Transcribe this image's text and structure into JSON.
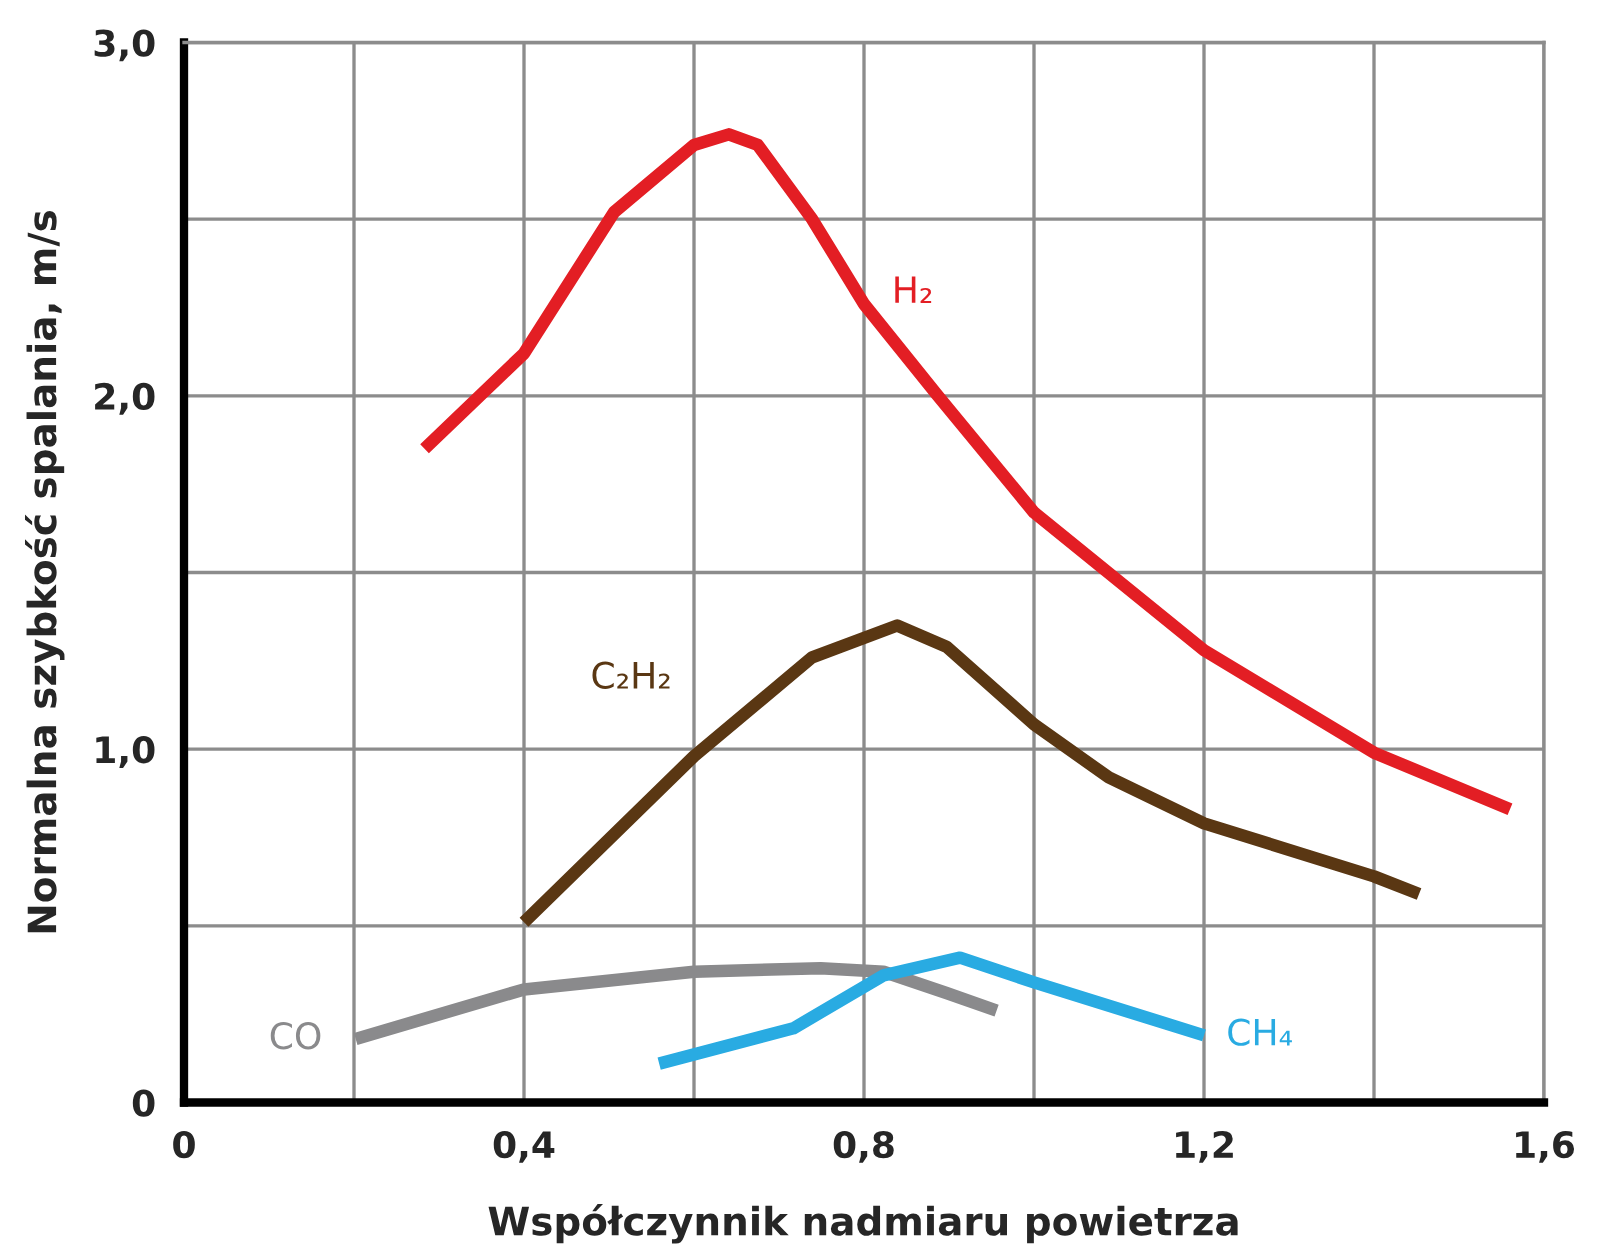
{
  "chart_data": {
    "type": "line",
    "xlabel": "Współczynnik nadmiaru powietrza",
    "ylabel": "Normalna szybkość spalania, m/s",
    "xlim": [
      0,
      1.6
    ],
    "ylim": [
      0,
      3.0
    ],
    "xticks": [
      0,
      {
        "value": 0.2,
        "label": null
      },
      {
        "value": 0.4,
        "label": "0,4"
      },
      {
        "value": 0.6,
        "label": null
      },
      {
        "value": 0.8,
        "label": "0,8"
      },
      {
        "value": 1.0,
        "label": null
      },
      {
        "value": 1.2,
        "label": "1,2"
      },
      {
        "value": 1.4,
        "label": null
      },
      {
        "value": 1.6,
        "label": "1,6"
      }
    ],
    "yticks": [
      0,
      {
        "value": 0.5,
        "label": null
      },
      {
        "value": 1.0,
        "label": "1,0"
      },
      {
        "value": 1.5,
        "label": null
      },
      {
        "value": 2.0,
        "label": "2,0"
      },
      {
        "value": 2.5,
        "label": null
      },
      {
        "value": 3.0,
        "label": "3,0"
      }
    ],
    "grid": true,
    "marker": "none",
    "line_style": "solid",
    "series": [
      {
        "name": "H₂",
        "color": "#e31e24",
        "x": [
          0.283,
          0.4,
          0.506,
          0.6,
          0.641,
          0.675,
          0.739,
          0.8,
          0.887,
          1.0,
          1.2,
          1.4,
          1.56
        ],
        "values": [
          1.85,
          2.12,
          2.52,
          2.71,
          2.74,
          2.71,
          2.5,
          2.26,
          2.0,
          1.67,
          1.28,
          0.99,
          0.83
        ]
      },
      {
        "name": "C₂H₂",
        "color": "#5a3713",
        "x": [
          0.4,
          0.6,
          0.739,
          0.839,
          0.897,
          1.0,
          1.088,
          1.2,
          1.4,
          1.453
        ],
        "values": [
          0.51,
          0.98,
          1.26,
          1.35,
          1.29,
          1.07,
          0.92,
          0.79,
          0.64,
          0.59
        ]
      },
      {
        "name": "CO",
        "color": "#8a8a8c",
        "x": [
          0.202,
          0.4,
          0.6,
          0.749,
          0.823,
          0.897,
          0.956
        ],
        "values": [
          0.18,
          0.32,
          0.37,
          0.38,
          0.37,
          0.31,
          0.26
        ]
      },
      {
        "name": "CH₄",
        "color": "#29abe2",
        "x": [
          0.559,
          0.717,
          0.823,
          0.913,
          1.0,
          1.2
        ],
        "values": [
          0.11,
          0.21,
          0.36,
          0.41,
          0.34,
          0.19
        ]
      }
    ]
  }
}
